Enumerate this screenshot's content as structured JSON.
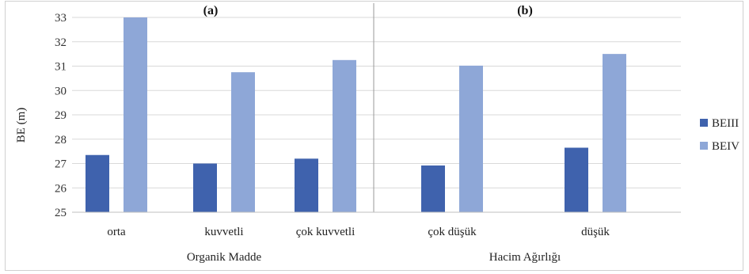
{
  "chart_data": {
    "type": "bar",
    "ylabel": "BE (m)",
    "ylim": [
      25,
      33
    ],
    "yticks": [
      25,
      26,
      27,
      28,
      29,
      30,
      31,
      32,
      33
    ],
    "grid": true,
    "legend_position": "right",
    "series": [
      {
        "name": "BEIII",
        "color": "#3f62ad"
      },
      {
        "name": "BEIV",
        "color": "#8ea7d7"
      }
    ],
    "panels": [
      {
        "label": "(a)",
        "group_label": "Organik  Madde",
        "categories": [
          "orta",
          "kuvvetli",
          "çok kuvvetli"
        ],
        "values": {
          "BEIII": [
            27.35,
            27.0,
            27.2
          ],
          "BEIV": [
            33.0,
            30.75,
            31.25
          ]
        }
      },
      {
        "label": "(b)",
        "group_label": "Hacim Ağırlığı",
        "categories": [
          "çok düşük",
          "düşük"
        ],
        "values": {
          "BEIII": [
            26.92,
            27.65
          ],
          "BEIV": [
            31.02,
            31.5
          ]
        }
      }
    ]
  }
}
